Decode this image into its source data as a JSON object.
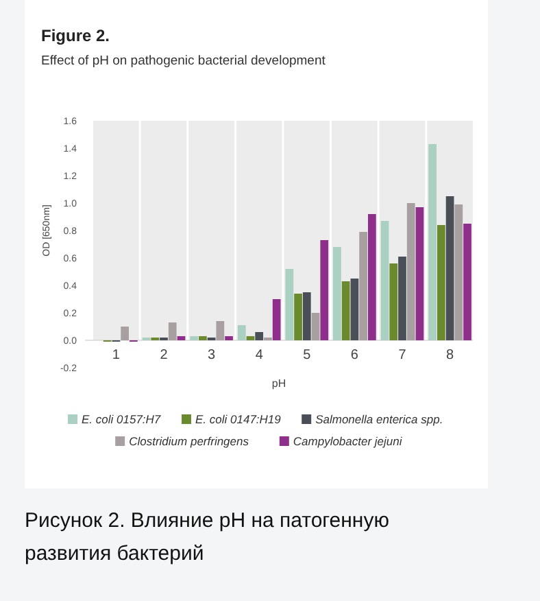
{
  "chart_data": {
    "type": "bar",
    "title": "Figure 2.",
    "subtitle": "Effect of pH on pathogenic bacterial development",
    "xlabel": "pH",
    "ylabel": "OD [650nm]",
    "categories": [
      "1",
      "2",
      "3",
      "4",
      "5",
      "6",
      "7",
      "8"
    ],
    "series": [
      {
        "name": "E. coli 0157:H7",
        "color": "#a9d0c1",
        "values": [
          null,
          0.02,
          0.03,
          0.11,
          0.52,
          0.68,
          0.87,
          1.43
        ]
      },
      {
        "name": "E. coli 0147:H19",
        "color": "#6b8a2e",
        "values": [
          -0.01,
          0.02,
          0.03,
          0.03,
          0.34,
          0.43,
          0.56,
          0.84
        ]
      },
      {
        "name": "Salmonella enterica spp.",
        "color": "#4a4f57",
        "values": [
          -0.01,
          0.02,
          0.02,
          0.06,
          0.35,
          0.45,
          0.61,
          1.05
        ]
      },
      {
        "name": "Clostridium perfringens",
        "color": "#a89fa1",
        "values": [
          0.1,
          0.13,
          0.14,
          0.02,
          0.2,
          0.79,
          1.0,
          0.99
        ]
      },
      {
        "name": "Campylobacter jejuni",
        "color": "#8e2f8c",
        "values": [
          -0.01,
          0.03,
          0.03,
          0.3,
          0.73,
          0.92,
          0.97,
          0.85
        ]
      }
    ],
    "ylim": [
      -0.2,
      1.6
    ],
    "yticks": [
      {
        "value": -0.2,
        "label": "-0.2"
      },
      {
        "value": 0,
        "label": "0.0"
      },
      0.2,
      0.4,
      0.6,
      0.8,
      {
        "value": 1,
        "label": "1.0"
      },
      1.2,
      1.4,
      1.6
    ],
    "legend": "bottom",
    "bands": [
      {
        "axis": "x",
        "from": "1",
        "to": "1",
        "color": "#ececec"
      },
      {
        "axis": "x",
        "from": "2",
        "to": "2",
        "color": "#ececec"
      },
      {
        "axis": "x",
        "from": "3",
        "to": "3",
        "color": "#ececec"
      },
      {
        "axis": "x",
        "from": "4",
        "to": "4",
        "color": "#ececec"
      },
      {
        "axis": "x",
        "from": "5",
        "to": "5",
        "color": "#ececec"
      },
      {
        "axis": "x",
        "from": "6",
        "to": "6",
        "color": "#ececec"
      },
      {
        "axis": "x",
        "from": "7",
        "to": "7",
        "color": "#ececec"
      },
      {
        "axis": "x",
        "from": "8",
        "to": "8",
        "color": "#ececec"
      }
    ],
    "annotations": [
      "Рисунок 2. Влияние pH на патогенную развития бактерий"
    ]
  }
}
